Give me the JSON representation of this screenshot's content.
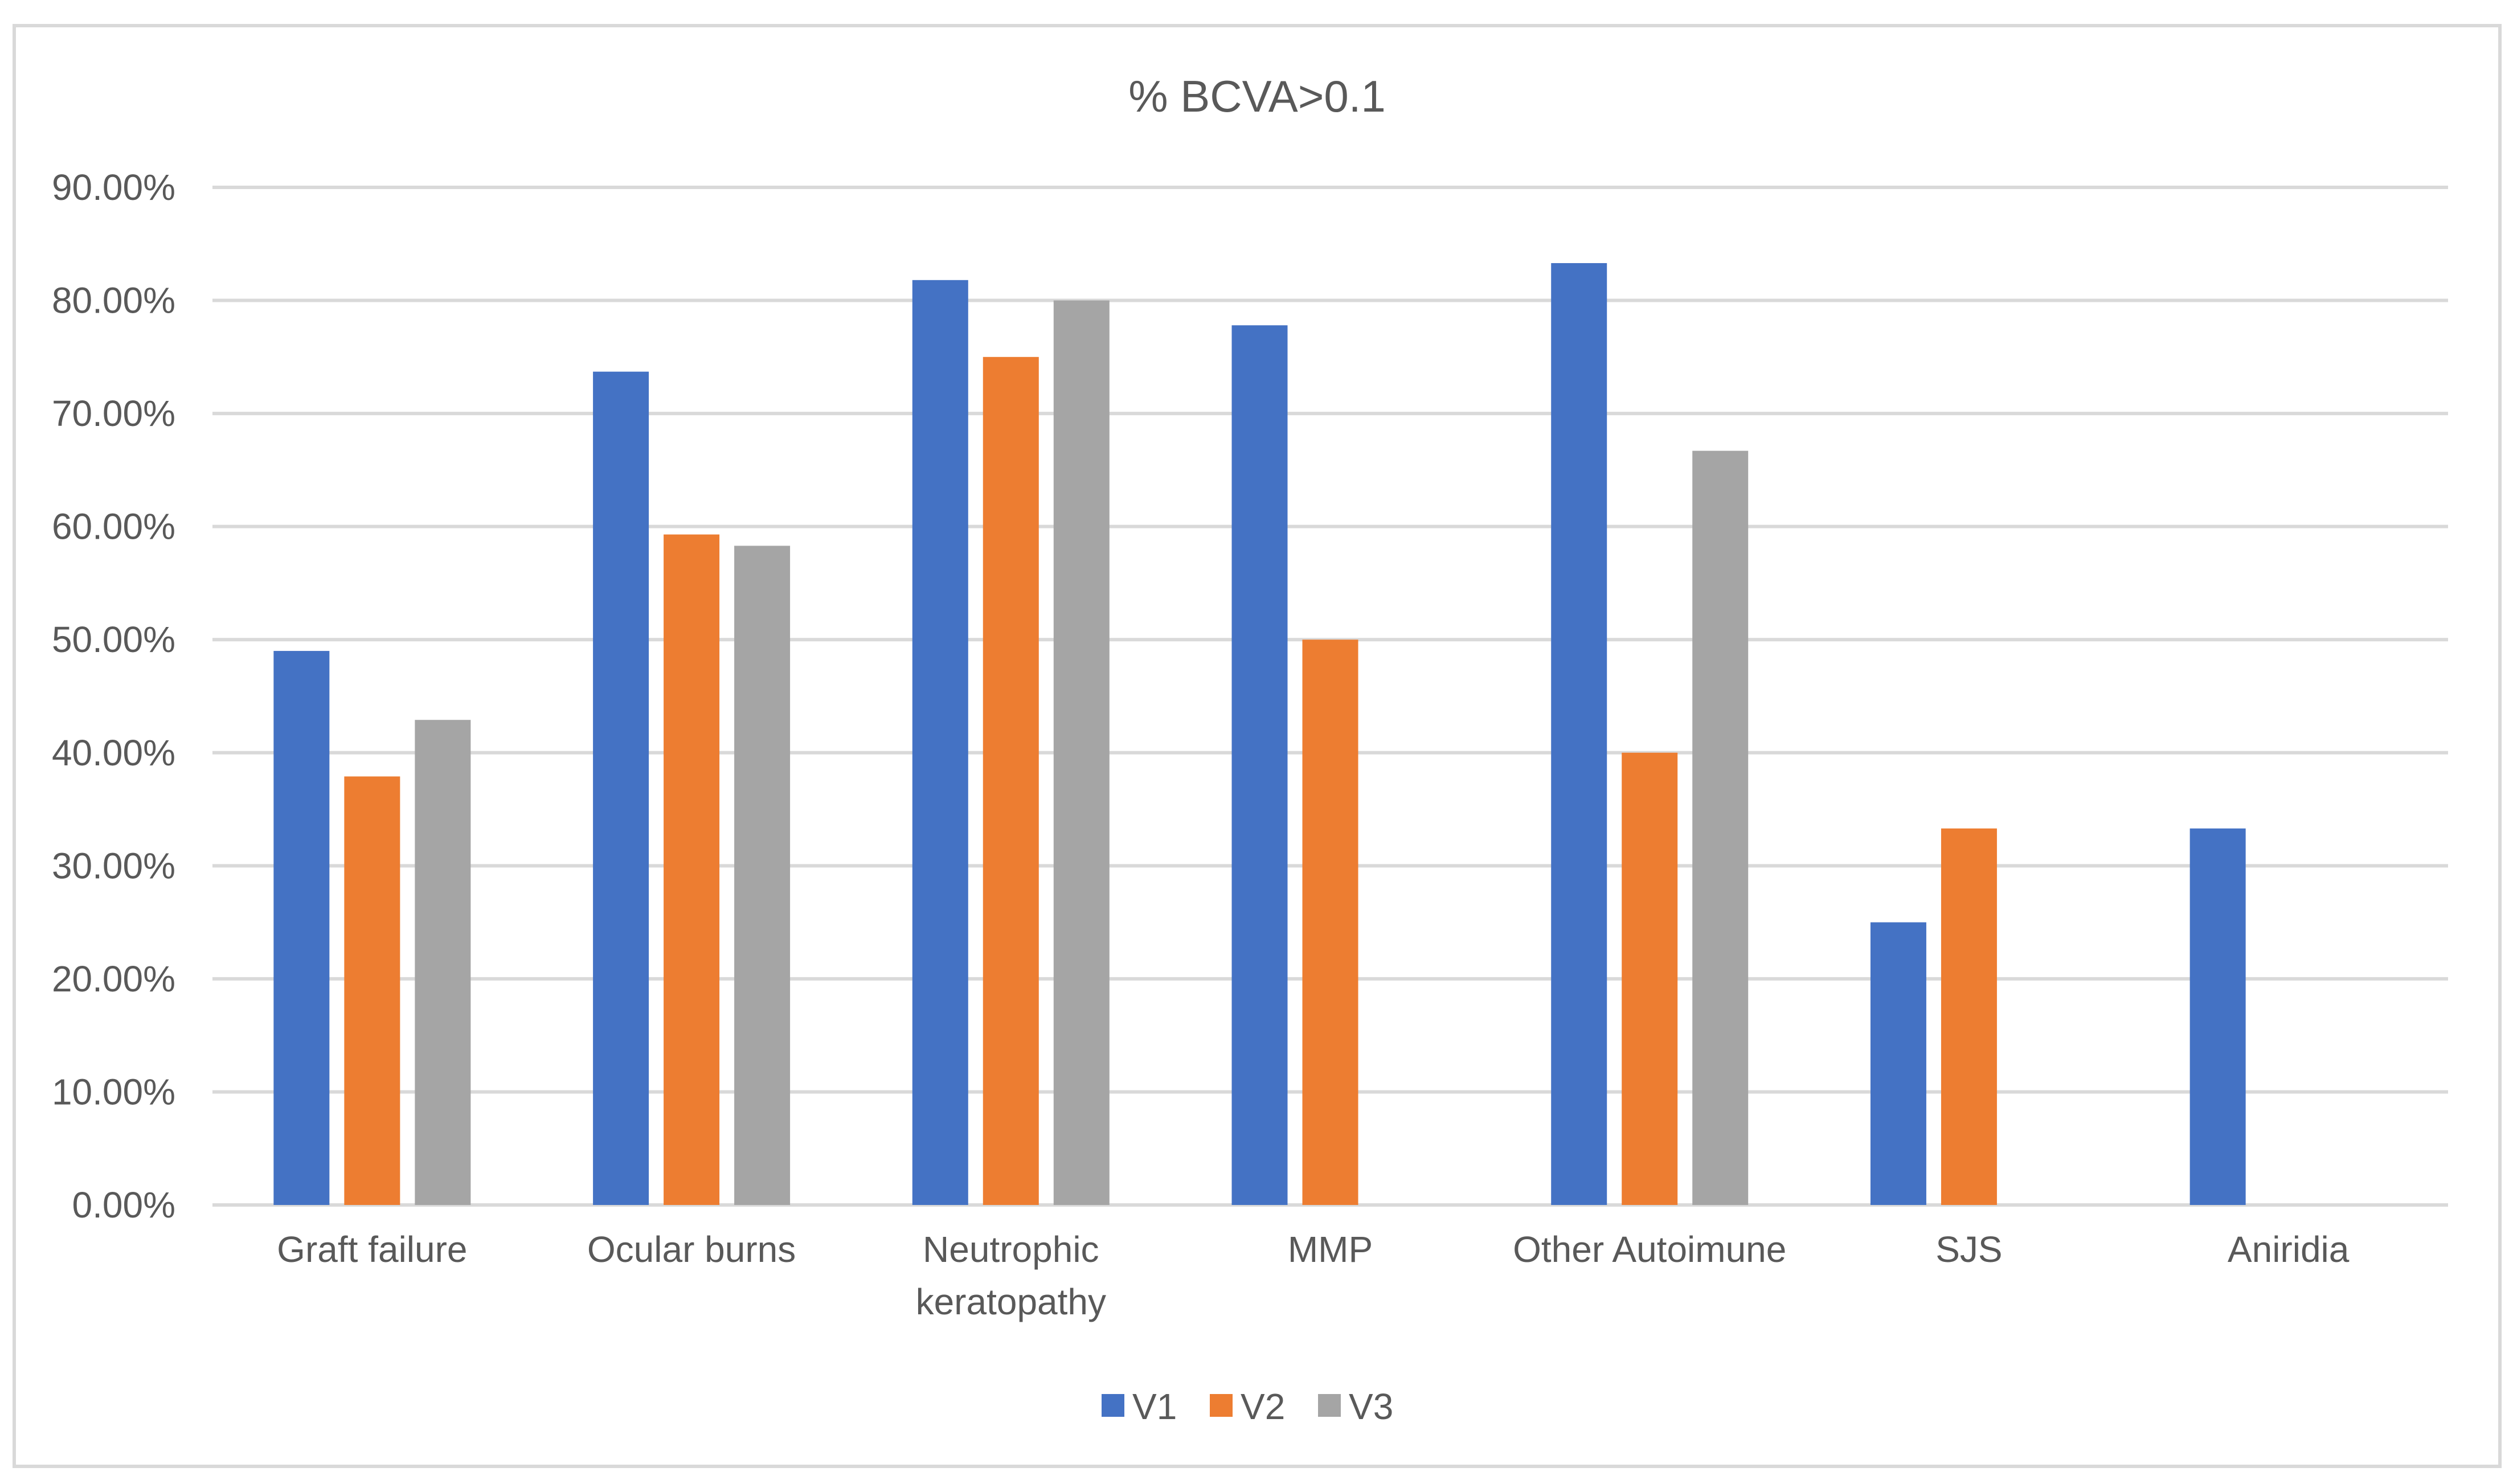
{
  "chart_data": {
    "type": "bar",
    "title": "% BCVA>0.1",
    "xlabel": "",
    "ylabel": "",
    "ylim": [
      0,
      0.9
    ],
    "y_ticks": [
      0,
      0.1,
      0.2,
      0.3,
      0.4,
      0.5,
      0.6,
      0.7,
      0.8,
      0.9
    ],
    "y_tick_labels": [
      "0.00%",
      "10.00%",
      "20.00%",
      "30.00%",
      "40.00%",
      "50.00%",
      "60.00%",
      "70.00%",
      "80.00%",
      "90.00%"
    ],
    "grid": true,
    "legend_position": "bottom",
    "categories": [
      [
        "Graft failure"
      ],
      [
        "Ocular burns"
      ],
      [
        "Neutrophic",
        "keratopathy"
      ],
      [
        "MMP"
      ],
      [
        "Other Autoimune"
      ],
      [
        "SJS"
      ],
      [
        "Aniridia"
      ]
    ],
    "series": [
      {
        "name": "V1",
        "color": "#4472c4",
        "values": [
          0.49,
          0.737,
          0.818,
          0.778,
          0.833,
          0.25,
          0.333
        ]
      },
      {
        "name": "V2",
        "color": "#ed7d31",
        "values": [
          0.379,
          0.593,
          0.75,
          0.5,
          0.4,
          0.333,
          0
        ]
      },
      {
        "name": "V3",
        "color": "#a5a5a5",
        "values": [
          0.429,
          0.583,
          0.8,
          0,
          0.667,
          0,
          0
        ]
      }
    ],
    "colors": {
      "grid": "#d9d9d9",
      "text": "#595959",
      "border": "#d9d9d9"
    }
  }
}
